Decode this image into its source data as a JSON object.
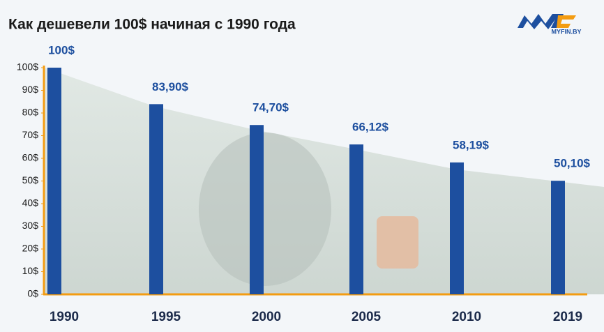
{
  "brand": "MYFIN.BY",
  "chart_data": {
    "type": "bar",
    "title": "Как дешевели 100$ начиная с 1990 года",
    "categories": [
      "1990",
      "1995",
      "2000",
      "2005",
      "2010",
      "2019"
    ],
    "values": [
      100,
      83.9,
      74.7,
      66.12,
      58.19,
      50.1
    ],
    "value_labels": [
      "100$",
      "83,90$",
      "74,70$",
      "66,12$",
      "58,19$",
      "50,10$"
    ],
    "color": "#1d4f9f",
    "ylim": [
      0,
      100
    ],
    "yticks": [
      {
        "value": 0,
        "label": "0$"
      },
      {
        "value": 10,
        "label": "10$"
      },
      {
        "value": 20,
        "label": "20$"
      },
      {
        "value": 30,
        "label": "30$"
      },
      {
        "value": 40,
        "label": "40$"
      },
      {
        "value": 50,
        "label": "50$"
      },
      {
        "value": 60,
        "label": "60$"
      },
      {
        "value": 70,
        "label": "70$"
      },
      {
        "value": 80,
        "label": "80$"
      },
      {
        "value": 90,
        "label": "90$"
      },
      {
        "value": 100,
        "label": "100$"
      }
    ],
    "grid": false
  }
}
